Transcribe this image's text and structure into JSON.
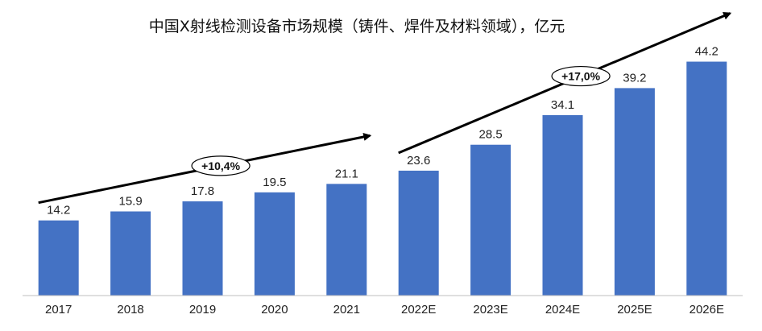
{
  "chart_data": {
    "type": "bar",
    "title": "中国X射线检测设备市场规模（铸件、焊件及材料领域），亿元",
    "categories": [
      "2017",
      "2018",
      "2019",
      "2020",
      "2021",
      "2022E",
      "2023E",
      "2024E",
      "2025E",
      "2026E"
    ],
    "values": [
      14.2,
      15.9,
      17.8,
      19.5,
      21.1,
      23.6,
      28.5,
      34.1,
      39.2,
      44.2
    ],
    "data_labels": [
      "14.2",
      "15.9",
      "17.8",
      "19.5",
      "21.1",
      "23.6",
      "28.5",
      "34.1",
      "39.2",
      "44.2"
    ],
    "ylim": [
      0,
      49
    ],
    "grid": false,
    "bar_color": "#4472C4",
    "annotations": [
      {
        "text": "+10,4%",
        "from_category": "2017",
        "to_category": "2021"
      },
      {
        "text": "+17,0%",
        "from_category": "2022E",
        "to_category": "2026E"
      }
    ]
  }
}
